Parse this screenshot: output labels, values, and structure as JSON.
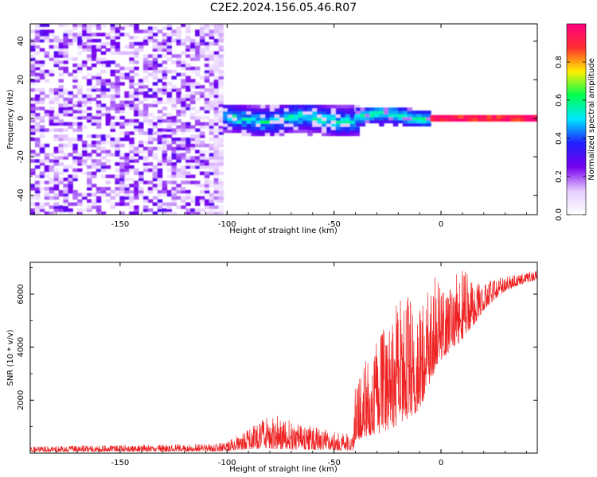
{
  "figure": {
    "title": "C2E2.2024.156.05.46.R07"
  },
  "chart_data": [
    {
      "type": "heatmap",
      "title": "",
      "xlabel": "Height of straight line (km)",
      "ylabel": "Frequency (Hz)",
      "xlim": [
        -192,
        45
      ],
      "ylim": [
        -50,
        49
      ],
      "xticks": [
        -150,
        -100,
        -50,
        0
      ],
      "xtick_labels": [
        "-150",
        "-100",
        "-50",
        "0"
      ],
      "yticks": [
        40,
        20,
        0,
        -20,
        -40
      ],
      "ytick_labels": [
        "40",
        "20",
        "0",
        "-20",
        "-40"
      ],
      "colorbar": {
        "label": "Normalized spectral amplitude",
        "range": [
          0,
          1
        ],
        "ticks": [
          0.0,
          0.2,
          0.4,
          0.6,
          0.8
        ],
        "tick_labels": [
          "0.0",
          "0.2",
          "0.4",
          "0.6",
          "0.8"
        ],
        "colormap": [
          "#ffffff",
          "#e6ccff",
          "#7700ee",
          "#2020ff",
          "#00e6ff",
          "#00ff50",
          "#ffee00",
          "#ff3030",
          "#ff0080"
        ]
      },
      "regions": [
        {
          "x": [
            -192,
            -102
          ],
          "y": [
            -50,
            49
          ],
          "amplitude": [
            0.05,
            0.3
          ],
          "pattern": "broadband noise"
        },
        {
          "x": [
            -102,
            -40
          ],
          "y": [
            -9,
            7
          ],
          "amplitude": [
            0.2,
            0.6
          ],
          "pattern": "signal band"
        },
        {
          "x": [
            -40,
            -5
          ],
          "y": [
            -4,
            5
          ],
          "amplitude": [
            0.3,
            0.6
          ],
          "pattern": "signal band"
        },
        {
          "x": [
            -5,
            45
          ],
          "y": [
            -1.5,
            1.5
          ],
          "amplitude": [
            0.85,
            1.0
          ],
          "pattern": "narrow line at 0 Hz"
        }
      ]
    },
    {
      "type": "line",
      "title": "",
      "xlabel": "Height of straight line (km)",
      "ylabel": "SNR (10 * v/v)",
      "xlim": [
        -192,
        45
      ],
      "ylim": [
        0,
        7200
      ],
      "xticks": [
        -150,
        -100,
        -50,
        0
      ],
      "xtick_labels": [
        "-150",
        "-100",
        "-50",
        "0"
      ],
      "yticks": [
        2000,
        4000,
        6000
      ],
      "ytick_labels": [
        "2000",
        "4000",
        "6000"
      ],
      "series": [
        {
          "color": "#ee2222",
          "envelope": {
            "x": [
              -192,
              -150,
              -105,
              -100,
              -95,
              -90,
              -85,
              -80,
              -75,
              -70,
              -65,
              -60,
              -55,
              -50,
              -45,
              -41,
              -40,
              -35,
              -30,
              -25,
              -20,
              -15,
              -12,
              -10,
              -8,
              -5,
              -2,
              0,
              5,
              10,
              15,
              20,
              25,
              30,
              35,
              40,
              45
            ],
            "low": [
              50,
              60,
              70,
              80,
              120,
              150,
              170,
              160,
              150,
              140,
              140,
              130,
              120,
              110,
              100,
              100,
              500,
              600,
              700,
              900,
              1000,
              1300,
              1500,
              1700,
              2000,
              2700,
              3300,
              3500,
              3900,
              4300,
              4800,
              5400,
              5800,
              6100,
              6300,
              6450,
              6550
            ],
            "high": [
              250,
              300,
              350,
              450,
              650,
              900,
              1200,
              1400,
              1500,
              1200,
              1100,
              1000,
              900,
              800,
              750,
              650,
              2600,
              3500,
              4200,
              5000,
              5700,
              6200,
              5300,
              6000,
              5500,
              6400,
              6800,
              6500,
              6600,
              7250,
              6400,
              6500,
              6600,
              6650,
              6750,
              6820,
              6900
            ]
          }
        }
      ]
    }
  ]
}
